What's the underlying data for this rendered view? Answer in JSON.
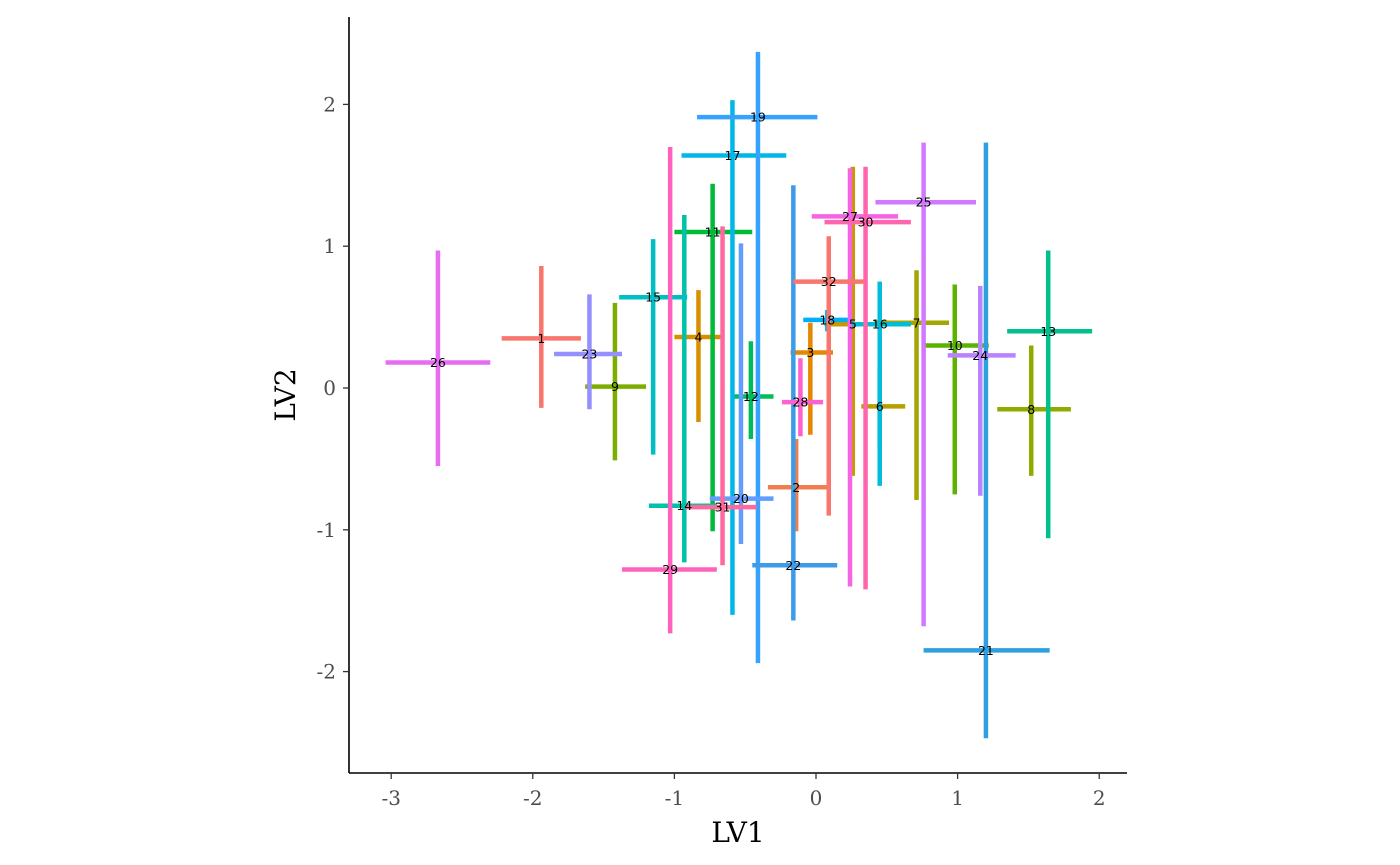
{
  "chart_data": {
    "type": "scatter",
    "subtype": "crosshair error bars (point estimate with horizontal and vertical intervals)",
    "title": "",
    "xlabel": "LV1",
    "ylabel": "LV2",
    "xlim": [
      -3.3,
      2.2
    ],
    "ylim": [
      -2.7,
      2.6
    ],
    "xticks": [
      -3,
      -2,
      -1,
      0,
      1,
      2
    ],
    "yticks": [
      -2,
      -1,
      0,
      1,
      2
    ],
    "xtick_labels": [
      "-3",
      "-2",
      "-1",
      "0",
      "1",
      "2"
    ],
    "ytick_labels": [
      "-2",
      "-1",
      "0",
      "1",
      "2"
    ],
    "grid": false,
    "legend": "none",
    "points": [
      {
        "label": "1",
        "x": -1.94,
        "y": 0.35,
        "xmin": -2.22,
        "xmax": -1.66,
        "ymin": -0.14,
        "ymax": 0.86,
        "color": "#F8766D"
      },
      {
        "label": "2",
        "x": -0.14,
        "y": -0.7,
        "xmin": -0.34,
        "xmax": 0.08,
        "ymin": -1.01,
        "ymax": -0.36,
        "color": "#EF7F4E"
      },
      {
        "label": "3",
        "x": -0.04,
        "y": 0.25,
        "xmin": -0.18,
        "xmax": 0.12,
        "ymin": -0.33,
        "ymax": 0.46,
        "color": "#E58700"
      },
      {
        "label": "4",
        "x": -0.83,
        "y": 0.36,
        "xmin": -1.0,
        "xmax": -0.66,
        "ymin": -0.24,
        "ymax": 0.69,
        "color": "#D89000"
      },
      {
        "label": "5",
        "x": 0.26,
        "y": 0.45,
        "xmin": 0.06,
        "xmax": 0.44,
        "ymin": -0.62,
        "ymax": 1.56,
        "color": "#C99800"
      },
      {
        "label": "6",
        "x": 0.45,
        "y": -0.13,
        "xmin": 0.32,
        "xmax": 0.63,
        "ymin": -0.42,
        "ymax": 0.13,
        "color": "#B79F00"
      },
      {
        "label": "7",
        "x": 0.71,
        "y": 0.46,
        "xmin": 0.41,
        "xmax": 0.94,
        "ymin": -0.79,
        "ymax": 0.83,
        "color": "#A3A500"
      },
      {
        "label": "8",
        "x": 1.52,
        "y": -0.15,
        "xmin": 1.28,
        "xmax": 1.8,
        "ymin": -0.62,
        "ymax": 0.3,
        "color": "#8EAB00"
      },
      {
        "label": "9",
        "x": -1.42,
        "y": 0.01,
        "xmin": -1.63,
        "xmax": -1.2,
        "ymin": -0.51,
        "ymax": 0.6,
        "color": "#7CAE00"
      },
      {
        "label": "10",
        "x": 0.98,
        "y": 0.3,
        "xmin": 0.76,
        "xmax": 1.22,
        "ymin": -0.75,
        "ymax": 0.73,
        "color": "#5BB300"
      },
      {
        "label": "11",
        "x": -0.73,
        "y": 1.1,
        "xmin": -1.0,
        "xmax": -0.45,
        "ymin": -1.01,
        "ymax": 1.44,
        "color": "#00BA38"
      },
      {
        "label": "12",
        "x": -0.46,
        "y": -0.06,
        "xmin": -0.59,
        "xmax": -0.3,
        "ymin": -0.36,
        "ymax": 0.33,
        "color": "#00BD5C"
      },
      {
        "label": "13",
        "x": 1.64,
        "y": 0.4,
        "xmin": 1.35,
        "xmax": 1.95,
        "ymin": -1.06,
        "ymax": 0.97,
        "color": "#00C08B"
      },
      {
        "label": "14",
        "x": -0.93,
        "y": -0.83,
        "xmin": -1.18,
        "xmax": -0.7,
        "ymin": -1.23,
        "ymax": 1.22,
        "color": "#00C1A7"
      },
      {
        "label": "15",
        "x": -1.15,
        "y": 0.64,
        "xmin": -1.39,
        "xmax": -0.91,
        "ymin": -0.47,
        "ymax": 1.05,
        "color": "#00BFC4"
      },
      {
        "label": "16",
        "x": 0.45,
        "y": 0.45,
        "xmin": 0.25,
        "xmax": 0.67,
        "ymin": -0.69,
        "ymax": 0.75,
        "color": "#00BCD8"
      },
      {
        "label": "17",
        "x": -0.59,
        "y": 1.64,
        "xmin": -0.95,
        "xmax": -0.21,
        "ymin": -1.6,
        "ymax": 2.03,
        "color": "#00B8E7"
      },
      {
        "label": "18",
        "x": 0.08,
        "y": 0.48,
        "xmin": -0.09,
        "xmax": 0.26,
        "ymin": 0.4,
        "ymax": 0.55,
        "color": "#00B0F6"
      },
      {
        "label": "19",
        "x": -0.41,
        "y": 1.91,
        "xmin": -0.84,
        "xmax": 0.01,
        "ymin": -1.94,
        "ymax": 2.37,
        "color": "#35A2FF"
      },
      {
        "label": "20",
        "x": -0.53,
        "y": -0.78,
        "xmin": -0.75,
        "xmax": -0.3,
        "ymin": -1.1,
        "ymax": 1.02,
        "color": "#619CFF"
      },
      {
        "label": "21",
        "x": 1.2,
        "y": -1.85,
        "xmin": 0.76,
        "xmax": 1.65,
        "ymin": -2.47,
        "ymax": 1.73,
        "color": "#2E9FDF"
      },
      {
        "label": "22",
        "x": -0.16,
        "y": -1.25,
        "xmin": -0.45,
        "xmax": 0.15,
        "ymin": -1.64,
        "ymax": 1.43,
        "color": "#3D9BE8"
      },
      {
        "label": "23",
        "x": -1.6,
        "y": 0.24,
        "xmin": -1.85,
        "xmax": -1.37,
        "ymin": -0.15,
        "ymax": 0.66,
        "color": "#9590FF"
      },
      {
        "label": "24",
        "x": 1.16,
        "y": 0.23,
        "xmin": 0.93,
        "xmax": 1.41,
        "ymin": -0.76,
        "ymax": 0.72,
        "color": "#B983FF"
      },
      {
        "label": "25",
        "x": 0.76,
        "y": 1.31,
        "xmin": 0.42,
        "xmax": 1.13,
        "ymin": -1.68,
        "ymax": 1.73,
        "color": "#D277FF"
      },
      {
        "label": "26",
        "x": -2.67,
        "y": 0.18,
        "xmin": -3.04,
        "xmax": -2.3,
        "ymin": -0.55,
        "ymax": 0.97,
        "color": "#E76BF3"
      },
      {
        "label": "27",
        "x": 0.24,
        "y": 1.21,
        "xmin": -0.03,
        "xmax": 0.58,
        "ymin": -1.4,
        "ymax": 1.55,
        "color": "#F564E3"
      },
      {
        "label": "28",
        "x": -0.11,
        "y": -0.1,
        "xmin": -0.24,
        "xmax": 0.05,
        "ymin": -0.34,
        "ymax": 0.21,
        "color": "#FD61D1"
      },
      {
        "label": "29",
        "x": -1.03,
        "y": -1.28,
        "xmin": -1.37,
        "xmax": -0.7,
        "ymin": -1.73,
        "ymax": 1.7,
        "color": "#FF62BC"
      },
      {
        "label": "30",
        "x": 0.35,
        "y": 1.17,
        "xmin": 0.06,
        "xmax": 0.67,
        "ymin": -1.42,
        "ymax": 1.56,
        "color": "#FF65AC"
      },
      {
        "label": "31",
        "x": -0.66,
        "y": -0.84,
        "xmin": -0.92,
        "xmax": -0.42,
        "ymin": -1.25,
        "ymax": 1.14,
        "color": "#FF689E"
      },
      {
        "label": "32",
        "x": 0.09,
        "y": 0.75,
        "xmin": -0.16,
        "xmax": 0.34,
        "ymin": -0.9,
        "ymax": 1.07,
        "color": "#F8766D"
      }
    ]
  }
}
